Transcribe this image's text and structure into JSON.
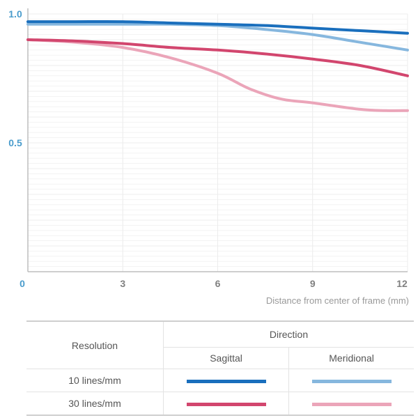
{
  "chart_data": {
    "type": "line",
    "xlabel": "Distance from center of frame (mm)",
    "ylabel": "",
    "xlim": [
      0,
      12
    ],
    "ylim": [
      0,
      1.0
    ],
    "x_ticks": [
      "0",
      "3",
      "6",
      "9",
      "12"
    ],
    "y_ticks": [
      "0.5",
      "1.0"
    ],
    "grid": true,
    "series": [
      {
        "resolution": "10 lines/mm",
        "direction": "Sagittal",
        "color": "#1a6fbd",
        "x": [
          0,
          1.5,
          3,
          4.5,
          6,
          7.5,
          9,
          10.5,
          12
        ],
        "y": [
          0.97,
          0.97,
          0.97,
          0.965,
          0.96,
          0.955,
          0.945,
          0.935,
          0.925
        ]
      },
      {
        "resolution": "10 lines/mm",
        "direction": "Meridional",
        "color": "#86b7de",
        "x": [
          0,
          1.5,
          3,
          4.5,
          6,
          7.5,
          9,
          10.5,
          12
        ],
        "y": [
          0.96,
          0.96,
          0.96,
          0.96,
          0.955,
          0.94,
          0.92,
          0.89,
          0.86
        ]
      },
      {
        "resolution": "30 lines/mm",
        "direction": "Sagittal",
        "color": "#d2466e",
        "x": [
          0,
          1.5,
          3,
          4.5,
          6,
          7.5,
          9,
          10.5,
          12
        ],
        "y": [
          0.9,
          0.895,
          0.885,
          0.87,
          0.86,
          0.845,
          0.825,
          0.8,
          0.76
        ]
      },
      {
        "resolution": "30 lines/mm",
        "direction": "Meridional",
        "color": "#eba5b9",
        "x": [
          0,
          1.5,
          3,
          4.5,
          6,
          7,
          8,
          9,
          10.5,
          11.3,
          12
        ],
        "y": [
          0.9,
          0.89,
          0.87,
          0.83,
          0.77,
          0.71,
          0.67,
          0.655,
          0.63,
          0.625,
          0.625
        ]
      }
    ]
  },
  "legend": {
    "resolution_header": "Resolution",
    "direction_header": "Direction",
    "sagittal_label": "Sagittal",
    "meridional_label": "Meridional",
    "rows": [
      {
        "label": "10 lines/mm",
        "sagittal_color": "#1a6fbd",
        "meridional_color": "#86b7de"
      },
      {
        "label": "30 lines/mm",
        "sagittal_color": "#d2466e",
        "meridional_color": "#eba5b9"
      }
    ]
  },
  "colors": {
    "y_tick": "#4a9ccc",
    "x_tick": "#808080",
    "axis": "#bdbdbd",
    "grid": "#ececec"
  }
}
